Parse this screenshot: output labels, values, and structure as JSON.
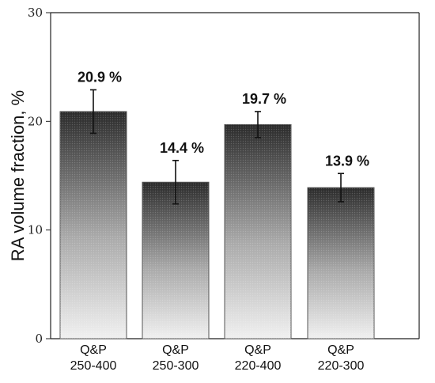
{
  "chart_data": {
    "type": "bar",
    "categories": [
      [
        "Q&P",
        "250-400"
      ],
      [
        "Q&P",
        "250-300"
      ],
      [
        "Q&P",
        "220-400"
      ],
      [
        "Q&P",
        "220-300"
      ]
    ],
    "values": [
      20.9,
      14.4,
      19.7,
      13.9
    ],
    "errors": [
      2.0,
      2.0,
      1.2,
      1.3
    ],
    "data_labels": [
      "20.9 %",
      "14.4 %",
      "19.7 %",
      "13.9 %"
    ],
    "title": "",
    "xlabel": "",
    "ylabel": "RA volume fraction, %",
    "ylim": [
      0,
      30
    ],
    "yticks": [
      0,
      10,
      20,
      30
    ],
    "grid": false,
    "bar_gradient": [
      "#2a2a2a",
      "#f0f0f0"
    ]
  }
}
